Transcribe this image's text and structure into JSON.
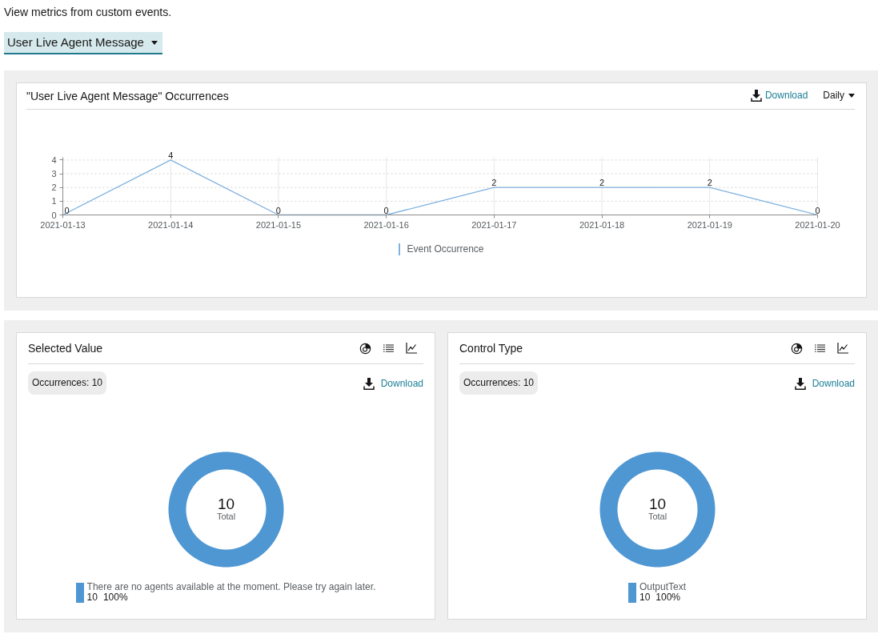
{
  "chart_data": [
    {
      "type": "other",
      "annotations": [
        "View metrics from custom events.",
        "User Live Agent Message"
      ]
    },
    {
      "type": "line",
      "title": "\"User Live Agent Message\" Occurrences",
      "annotations": [
        "Download",
        "Daily"
      ],
      "categories": [
        "2021-01-13",
        "2021-01-14",
        "2021-01-15",
        "2021-01-16",
        "2021-01-17",
        "2021-01-18",
        "2021-01-19",
        "2021-01-20"
      ],
      "series": [
        {
          "name": "Event Occurrence",
          "color": "#80b3e0",
          "values": [
            0,
            4,
            0,
            0,
            2,
            2,
            2,
            0
          ]
        }
      ],
      "ylim": [
        0,
        4.2
      ],
      "yticks": [
        0,
        1,
        2,
        3,
        4
      ],
      "grid": true,
      "legend": "bottom",
      "data_labels": true
    },
    {
      "type": "donut",
      "title": "Selected Value",
      "annotations": [
        "Occurrences: 10",
        "Download",
        "10",
        "Total",
        "100%"
      ],
      "categories": [
        "There are no agents available at the moment. Please try again later."
      ],
      "values": [
        10
      ],
      "colors": [
        "#4f97d3"
      ],
      "data_labels": true,
      "legend": "bottom"
    },
    {
      "type": "donut",
      "title": "Control Type",
      "annotations": [
        "Occurrences: 10",
        "Download",
        "10",
        "Total",
        "100%"
      ],
      "categories": [
        "OutputText"
      ],
      "values": [
        10
      ],
      "colors": [
        "#4f97d3"
      ],
      "data_labels": true,
      "legend": "bottom"
    }
  ]
}
